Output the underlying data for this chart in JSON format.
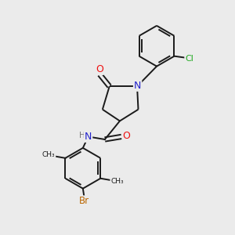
{
  "background_color": "#ebebeb",
  "bond_color": "#1a1a1a",
  "atom_colors": {
    "O": "#ee1111",
    "N": "#2222cc",
    "Cl": "#22aa22",
    "Br": "#bb6600",
    "H": "#777777",
    "C": "#1a1a1a"
  },
  "figsize": [
    3.0,
    3.0
  ],
  "dpi": 100
}
